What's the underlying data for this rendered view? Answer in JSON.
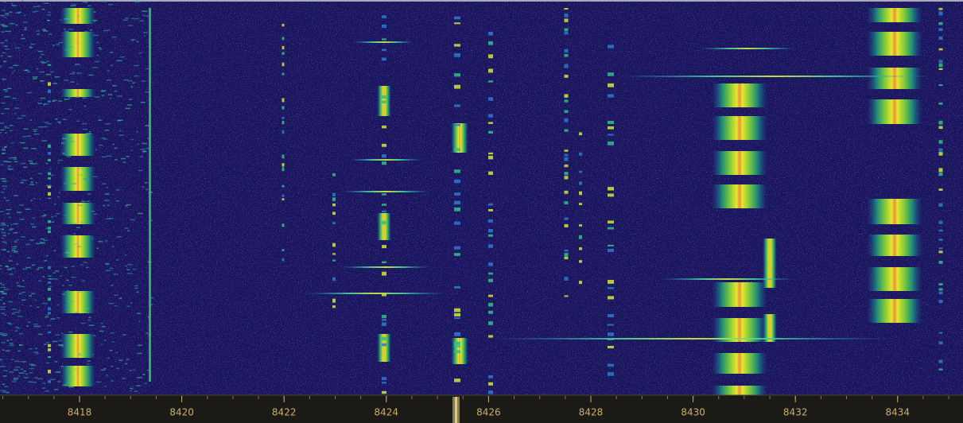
{
  "waterfall": {
    "frequency_labels": [
      8418,
      8420,
      8422,
      8424,
      8426,
      8428,
      8430,
      8432,
      8434
    ]
  }
}
